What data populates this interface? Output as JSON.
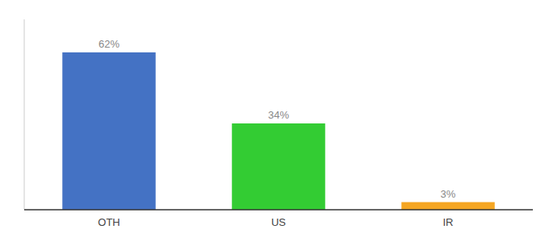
{
  "chart_data": {
    "type": "bar",
    "categories": [
      "OTH",
      "US",
      "IR"
    ],
    "values": [
      62,
      34,
      3
    ],
    "value_labels": [
      "62%",
      "34%",
      "3%"
    ],
    "colors": [
      "#4472c4",
      "#33cc33",
      "#f5a623"
    ],
    "ylim": [
      0,
      75
    ],
    "data_labels": true,
    "tick_labels": "x"
  }
}
